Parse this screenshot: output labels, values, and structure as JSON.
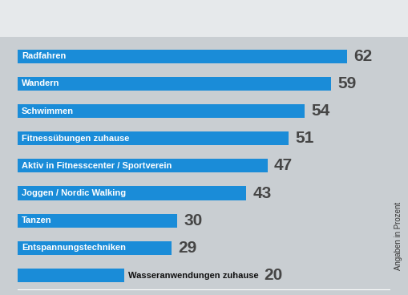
{
  "chart_data": {
    "type": "bar",
    "orientation": "horizontal",
    "categories": [
      "Radfahren",
      "Wandern",
      "Schwimmen",
      "Fitnessübungen zuhause",
      "Aktiv in Fitnesscenter / Sportverein",
      "Joggen / Nordic Walking",
      "Tanzen",
      "Entspannungstechniken",
      "Wasseranwendungen zuhause"
    ],
    "values": [
      62,
      59,
      54,
      51,
      47,
      43,
      30,
      29,
      20
    ],
    "color": "#1a8cd8",
    "xlim": [
      0,
      70
    ],
    "data_labels": true,
    "tick_labels": false,
    "annotations": [
      "Angaben in Prozent"
    ]
  }
}
